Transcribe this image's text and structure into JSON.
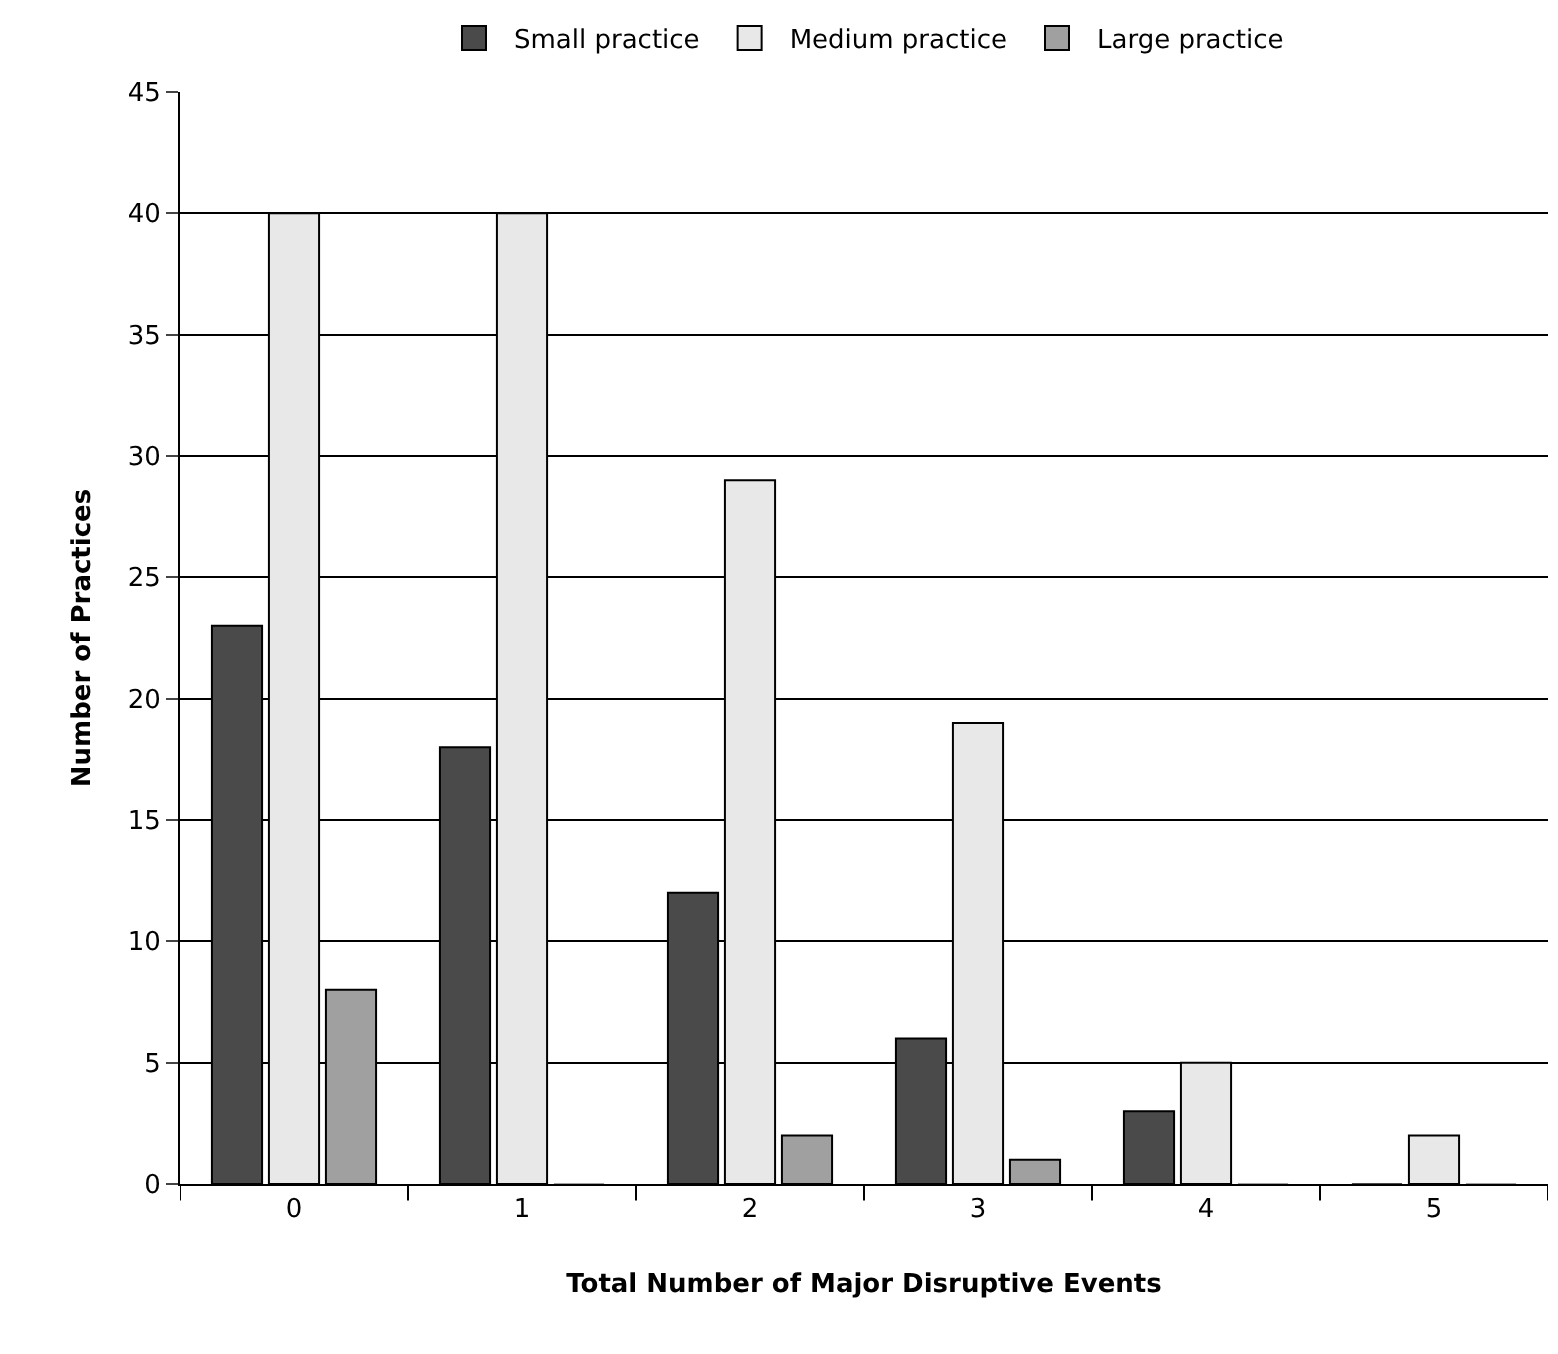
{
  "chart_data": {
    "type": "bar",
    "xlabel": "Total Number of Major Disruptive Events",
    "ylabel": "Number of Practices",
    "categories": [
      "0",
      "1",
      "2",
      "3",
      "4",
      "5"
    ],
    "series": [
      {
        "name": "Small practice",
        "color": "#4a4a4a",
        "values": [
          23,
          18,
          12,
          6,
          3,
          0
        ]
      },
      {
        "name": "Medium practice",
        "color": "#e8e8e8",
        "values": [
          40,
          40,
          29,
          19,
          5,
          2
        ]
      },
      {
        "name": "Large practice",
        "color": "#a0a0a0",
        "values": [
          8,
          0,
          2,
          1,
          0,
          0
        ]
      }
    ],
    "ylim": [
      0,
      45
    ],
    "yticks": [
      0,
      5,
      10,
      15,
      20,
      25,
      30,
      35,
      40,
      45
    ],
    "grid": "y",
    "legend": "top"
  }
}
